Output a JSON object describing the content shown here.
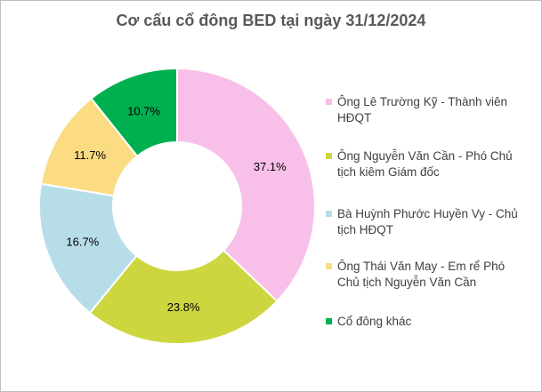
{
  "chart_data": {
    "type": "pie",
    "title": "Cơ cấu cổ đông BED tại ngày 31/12/2024",
    "legend_position": "right",
    "slices": [
      {
        "label": "Ông Lê Trường Kỹ - Thành viên HĐQT",
        "value": 37.1,
        "display": "37.1%",
        "color": "#f8c0e8"
      },
      {
        "label": "Ông Nguyễn Văn Cần - Phó Chủ tịch kiêm Giám đốc",
        "value": 23.8,
        "display": "23.8%",
        "color": "#cdd63f"
      },
      {
        "label": "Bà Huỳnh Phước Huyền Vy - Chủ tịch HĐQT",
        "value": 16.7,
        "display": "16.7%",
        "color": "#b7dde8"
      },
      {
        "label": "Ông Thái Văn May - Em rể Phó Chủ tịch Nguyễn Văn Cần",
        "value": 11.7,
        "display": "11.7%",
        "color": "#fbdc82"
      },
      {
        "label": "Cổ đông khác",
        "value": 10.7,
        "display": "10.7%",
        "color": "#00b050"
      }
    ]
  }
}
